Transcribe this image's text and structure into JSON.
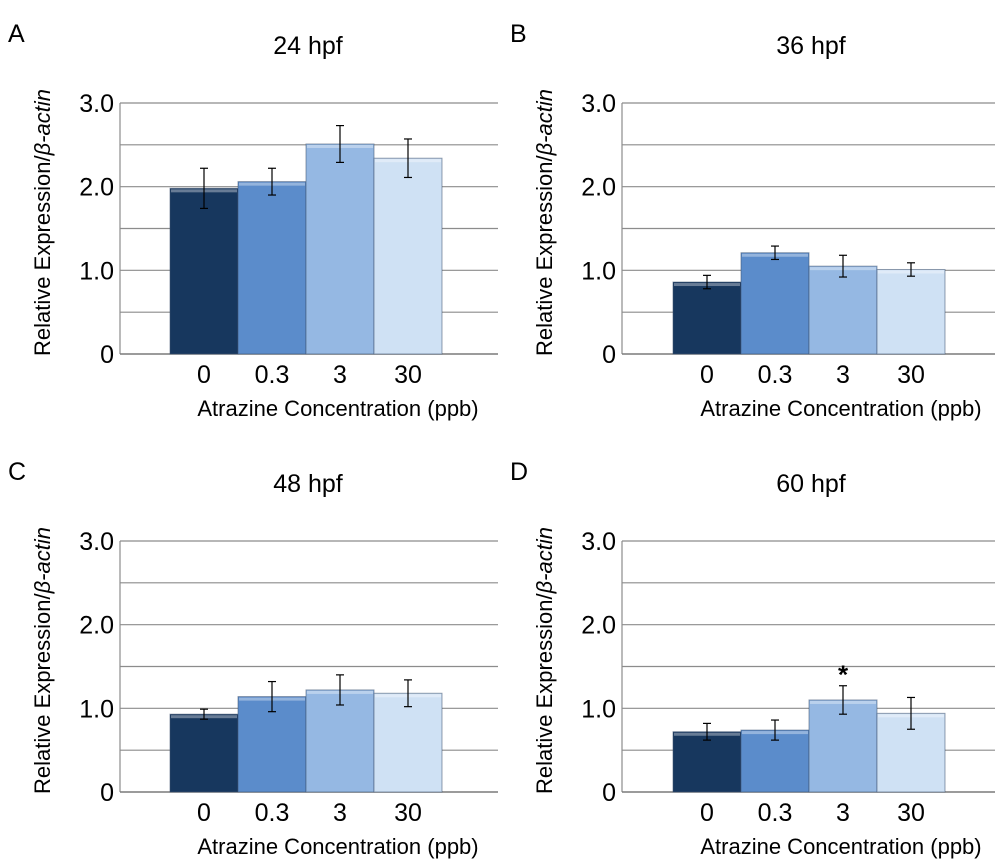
{
  "figure": {
    "palette": [
      "#17375e",
      "#5b8ccb",
      "#95b8e3",
      "#cfe1f4"
    ]
  },
  "chart_data": [
    {
      "panel": "A",
      "type": "bar",
      "title": "24 hpf",
      "xlabel": "Atrazine Concentration (ppb)",
      "ylabel": "Relative Expression/β-actin",
      "categories": [
        "0",
        "0.3",
        "3",
        "30"
      ],
      "values": [
        1.98,
        2.06,
        2.51,
        2.34
      ],
      "errors": [
        0.24,
        0.16,
        0.22,
        0.23
      ],
      "ylim": [
        0,
        3.0
      ],
      "yticks": [
        0,
        1.0,
        2.0,
        3.0
      ],
      "ytick_labels": [
        "0",
        "1.0",
        "2.0",
        "3.0"
      ],
      "grid_lines": [
        0.5,
        1.0,
        1.5,
        2.0,
        2.5,
        3.0
      ],
      "annotations": []
    },
    {
      "panel": "B",
      "type": "bar",
      "title": "36 hpf",
      "xlabel": "Atrazine Concentration (ppb)",
      "ylabel": "Relative Expression/β-actin",
      "categories": [
        "0",
        "0.3",
        "3",
        "30"
      ],
      "values": [
        0.86,
        1.21,
        1.05,
        1.01
      ],
      "errors": [
        0.08,
        0.08,
        0.13,
        0.08
      ],
      "ylim": [
        0,
        3.0
      ],
      "yticks": [
        0,
        1.0,
        2.0,
        3.0
      ],
      "ytick_labels": [
        "0",
        "1.0",
        "2.0",
        "3.0"
      ],
      "grid_lines": [
        0.5,
        1.0,
        1.5,
        2.0,
        2.5,
        3.0
      ],
      "annotations": []
    },
    {
      "panel": "C",
      "type": "bar",
      "title": "48 hpf",
      "xlabel": "Atrazine Concentration (ppb)",
      "ylabel": "Relative Expression/β-actin",
      "categories": [
        "0",
        "0.3",
        "3",
        "30"
      ],
      "values": [
        0.93,
        1.14,
        1.22,
        1.18
      ],
      "errors": [
        0.06,
        0.18,
        0.18,
        0.16
      ],
      "ylim": [
        0,
        3.0
      ],
      "yticks": [
        0,
        1.0,
        2.0,
        3.0
      ],
      "ytick_labels": [
        "0",
        "1.0",
        "2.0",
        "3.0"
      ],
      "grid_lines": [
        0.5,
        1.0,
        1.5,
        2.0,
        2.5,
        3.0
      ],
      "annotations": []
    },
    {
      "panel": "D",
      "type": "bar",
      "title": "60 hpf",
      "xlabel": "Atrazine Concentration (ppb)",
      "ylabel": "Relative Expression/β-actin",
      "categories": [
        "0",
        "0.3",
        "3",
        "30"
      ],
      "values": [
        0.72,
        0.74,
        1.1,
        0.94
      ],
      "errors": [
        0.1,
        0.12,
        0.17,
        0.19
      ],
      "ylim": [
        0,
        3.0
      ],
      "yticks": [
        0,
        1.0,
        2.0,
        3.0
      ],
      "ytick_labels": [
        "0",
        "1.0",
        "2.0",
        "3.0"
      ],
      "grid_lines": [
        0.5,
        1.0,
        1.5,
        2.0,
        2.5,
        3.0
      ],
      "annotations": [
        {
          "category": "3",
          "text": "*"
        }
      ]
    }
  ]
}
